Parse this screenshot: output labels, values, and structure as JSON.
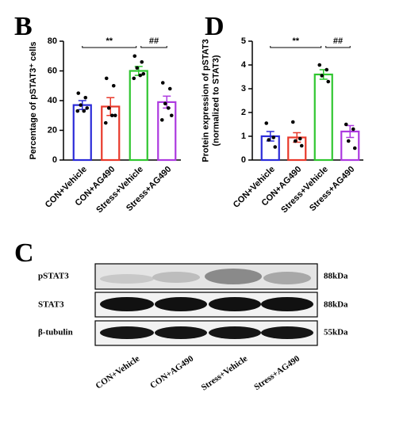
{
  "chart_data": [
    {
      "type": "bar",
      "panel_label": "B",
      "ylabel": [
        "Percentage of pSTAT3⁺ cells"
      ],
      "categories": [
        "CON+Vehicle",
        "CON+AG490",
        "Stress+Vehicle",
        "Stress+AG490"
      ],
      "values": [
        37,
        36,
        60,
        39
      ],
      "errors": [
        3,
        6,
        3,
        4
      ],
      "points": [
        [
          45,
          42,
          37,
          35,
          33,
          33
        ],
        [
          55,
          50,
          35,
          30,
          25,
          30
        ],
        [
          70,
          66,
          62,
          58,
          55,
          57
        ],
        [
          52,
          48,
          38,
          30,
          27,
          35
        ]
      ],
      "colors": [
        "#2b2bd8",
        "#e8392b",
        "#2fc62f",
        "#ad3ae0"
      ],
      "ylim": [
        0,
        80
      ],
      "yticks": [
        0,
        20,
        40,
        60,
        80
      ],
      "annotations": [
        "**",
        "##"
      ]
    },
    {
      "type": "bar",
      "panel_label": "D",
      "ylabel": [
        "Protein expression of pSTAT3",
        "(normalized to STAT3)"
      ],
      "categories": [
        "CON+Vehicle",
        "CON+AG490",
        "Stress+Vehicle",
        "Stress+AG490"
      ],
      "values": [
        1.0,
        0.95,
        3.6,
        1.2
      ],
      "errors": [
        0.2,
        0.2,
        0.2,
        0.25
      ],
      "points": [
        [
          1.55,
          0.95,
          0.85,
          0.55
        ],
        [
          1.6,
          0.9,
          0.8,
          0.6
        ],
        [
          4.0,
          3.8,
          3.55,
          3.3
        ],
        [
          1.5,
          1.3,
          0.8,
          0.5
        ]
      ],
      "colors": [
        "#2b2bd8",
        "#e8392b",
        "#2fc62f",
        "#ad3ae0"
      ],
      "ylim": [
        0,
        5
      ],
      "yticks": [
        0,
        1,
        2,
        3,
        4,
        5
      ],
      "annotations": [
        "**",
        "##"
      ]
    }
  ],
  "blot": {
    "panel_label": "C",
    "rows": [
      "pSTAT3",
      "STAT3",
      "β-tubulin"
    ],
    "sizes": [
      "88kDa",
      "88kDa",
      "55kDa"
    ],
    "lanes": [
      "CON+Vehicle",
      "CON+AG490",
      "Stress+Vehicle",
      "Stress+AG490"
    ]
  }
}
